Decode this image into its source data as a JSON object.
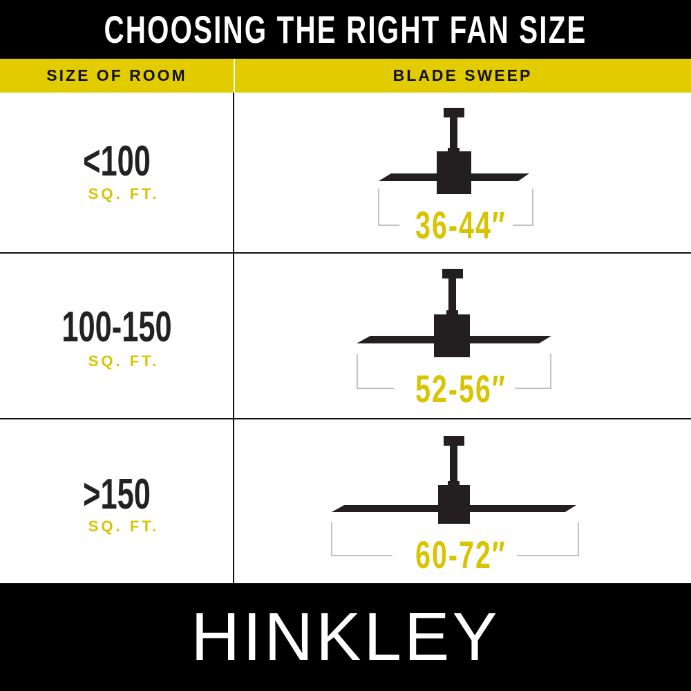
{
  "title": "CHOOSING THE RIGHT FAN SIZE",
  "columns": [
    "SIZE OF ROOM",
    "BLADE SWEEP"
  ],
  "rows": [
    {
      "room": "<100",
      "unit": "SQ. FT.",
      "sweep": "36-44″"
    },
    {
      "room": "100-150",
      "unit": "SQ. FT.",
      "sweep": "52-56″"
    },
    {
      "room": ">150",
      "unit": "SQ. FT.",
      "sweep": "60-72″"
    }
  ],
  "brand": "HINKLEY",
  "colors": {
    "accent": "#e2cc00",
    "header_bg": "#000000",
    "fan": "#231f20"
  },
  "icons": [
    "ceiling-fan-icon"
  ]
}
